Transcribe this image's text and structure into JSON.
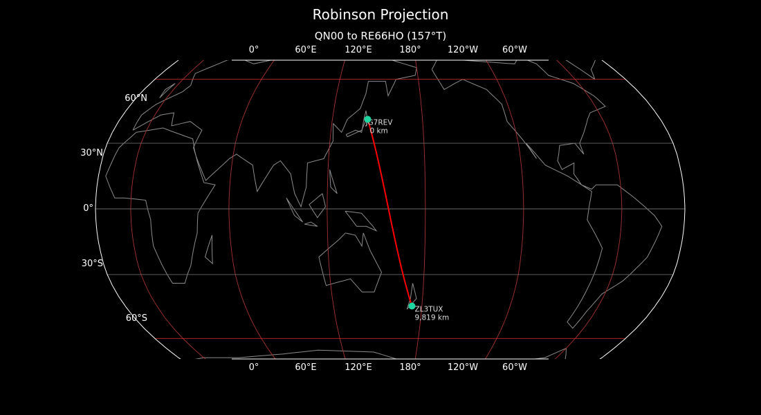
{
  "title": "Robinson Projection",
  "subtitle": "QN00 to RE66HO (157°T)",
  "lon_labels": [
    "0°",
    "60°E",
    "120°E",
    "180°",
    "120°W",
    "60°W"
  ],
  "lat_labels": [
    "60°N",
    "30°N",
    "0°",
    "30°S",
    "60°S"
  ],
  "stations": [
    {
      "call": "JG7REV",
      "distance": "0 km"
    },
    {
      "call": "ZL3TUX",
      "distance": "9,819 km"
    }
  ],
  "colors": {
    "background": "#000000",
    "coastline": "#8c8c8c",
    "meridians": "#a83232",
    "parallels_60": "#c02a2a",
    "parallels_other": "#6b6b6b",
    "path": "#ff0000",
    "marker": "#1fd6a0"
  }
}
